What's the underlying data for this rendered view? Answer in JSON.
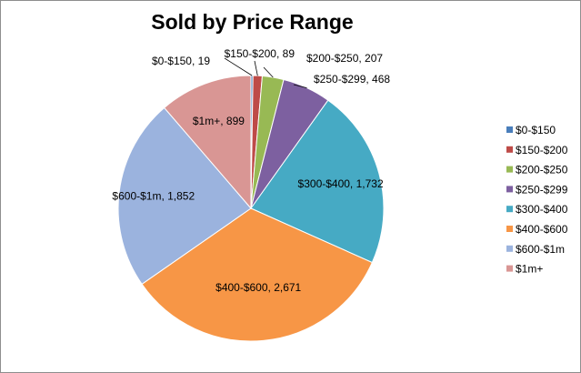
{
  "chart_data": {
    "type": "pie",
    "title": "Sold by Price Range",
    "categories": [
      "$0-$150",
      "$150-$200",
      "$200-$250",
      "$250-$299",
      "$300-$400",
      "$400-$600",
      "$600-$1m",
      "$1m+"
    ],
    "values": [
      19,
      89,
      207,
      468,
      1732,
      2671,
      1852,
      899
    ],
    "data_labels": [
      "$0-$150, 19",
      "$150-$200, 89",
      "$200-$250, 207",
      "$250-$299, 468",
      "$300-$400, 1,732",
      "$400-$600, 2,671",
      "$600-$1m, 1,852",
      "$1m+, 899"
    ],
    "colors": [
      "#4a7ebb",
      "#be4b48",
      "#98b954",
      "#7d60a0",
      "#46aac4",
      "#f79646",
      "#9bb3de",
      "#d99694"
    ],
    "legend_position": "right",
    "grid": false
  }
}
